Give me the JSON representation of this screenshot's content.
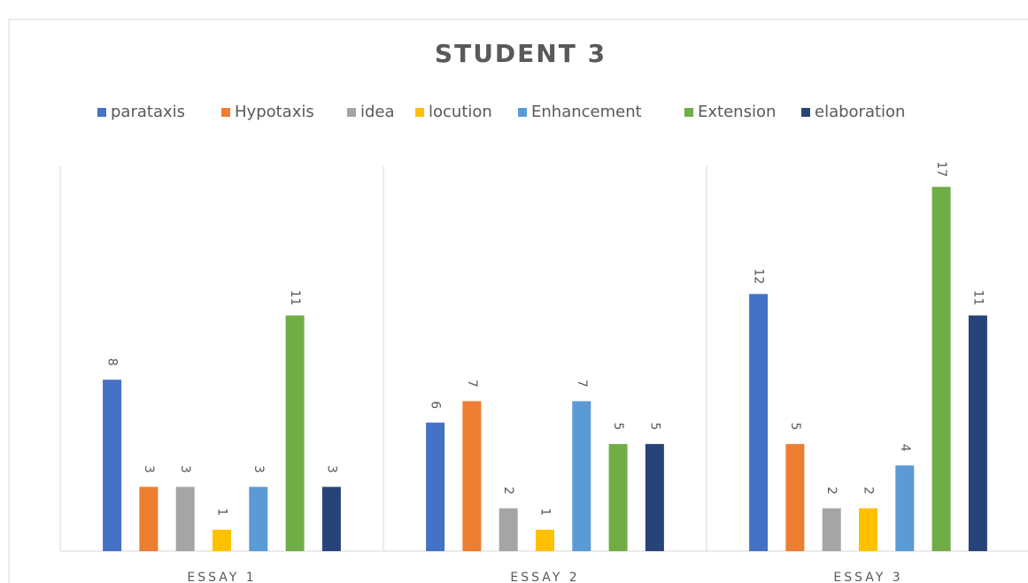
{
  "chart_data": {
    "type": "bar",
    "title": "STUDENT 3",
    "categories": [
      "ESSAY 1",
      "ESSAY 2",
      "ESSAY  3"
    ],
    "series": [
      {
        "name": "parataxis",
        "color": "#4472c4",
        "values": [
          8,
          6,
          12
        ]
      },
      {
        "name": "Hypotaxis",
        "color": "#ed7d31",
        "values": [
          3,
          7,
          5
        ]
      },
      {
        "name": "idea",
        "color": "#a5a5a5",
        "values": [
          3,
          2,
          2
        ]
      },
      {
        "name": "locution",
        "color": "#ffc000",
        "values": [
          1,
          1,
          2
        ]
      },
      {
        "name": "Enhancement",
        "color": "#5b9bd5",
        "values": [
          3,
          7,
          4
        ]
      },
      {
        "name": "Extension",
        "color": "#70ad47",
        "values": [
          11,
          5,
          17
        ]
      },
      {
        "name": "elaboration",
        "color": "#264478",
        "values": [
          3,
          5,
          11
        ]
      }
    ],
    "ylim": [
      0,
      18
    ],
    "legend": "top"
  }
}
